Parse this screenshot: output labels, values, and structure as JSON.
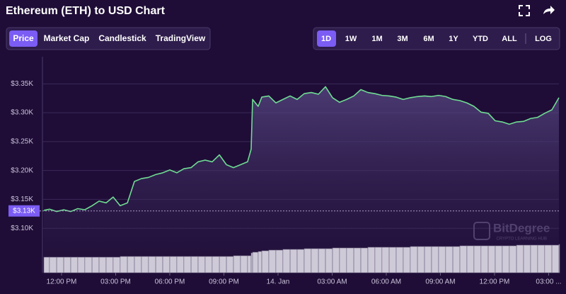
{
  "chart_data": {
    "type": "line",
    "title": "Ethereum (ETH) to USD Chart",
    "x": [
      -0.98,
      -0.67,
      -0.27,
      0.12,
      0.51,
      0.9,
      1.29,
      1.69,
      2.08,
      2.47,
      2.86,
      3.25,
      3.65,
      4.04,
      4.43,
      4.82,
      5.22,
      5.61,
      6.0,
      6.39,
      6.78,
      7.18,
      7.57,
      7.96,
      8.35,
      8.75,
      9.14,
      9.53,
      9.92,
      10.31,
      10.51,
      10.59,
      10.9,
      11.1,
      11.49,
      11.88,
      12.27,
      12.67,
      13.06,
      13.45,
      13.84,
      14.24,
      14.63,
      15.02,
      15.41,
      15.8,
      16.2,
      16.59,
      16.98,
      17.37,
      17.76,
      18.16,
      18.55,
      18.94,
      19.33,
      19.73,
      20.12,
      20.51,
      20.9,
      21.29,
      21.69,
      22.08,
      22.47,
      22.86,
      23.25,
      23.65,
      24.04,
      24.43,
      24.82,
      25.22,
      25.61,
      26.0,
      26.39,
      26.78,
      27.18,
      27.57
    ],
    "values": [
      3131,
      3133,
      3129,
      3132,
      3129,
      3134,
      3132,
      3139,
      3147,
      3144,
      3154,
      3139,
      3144,
      3181,
      3186,
      3188,
      3193,
      3196,
      3201,
      3196,
      3203,
      3205,
      3215,
      3218,
      3215,
      3227,
      3210,
      3205,
      3210,
      3215,
      3237,
      3323,
      3311,
      3327,
      3329,
      3317,
      3323,
      3329,
      3323,
      3333,
      3335,
      3332,
      3345,
      3326,
      3318,
      3323,
      3329,
      3340,
      3335,
      3333,
      3330,
      3329,
      3327,
      3323,
      3326,
      3328,
      3329,
      3328,
      3330,
      3328,
      3323,
      3321,
      3317,
      3311,
      3301,
      3299,
      3286,
      3284,
      3280,
      3284,
      3285,
      3290,
      3292,
      3299,
      3305,
      3326
    ],
    "volume": [
      22,
      22,
      22,
      22,
      22,
      22,
      22,
      22,
      22,
      22,
      22,
      23,
      23,
      23,
      23,
      23,
      23,
      23,
      23,
      23,
      23,
      23,
      23,
      23,
      23,
      23,
      23,
      24,
      24,
      24,
      28,
      29,
      30,
      31,
      32,
      32,
      33,
      33,
      33,
      34,
      34,
      34,
      34,
      35,
      35,
      35,
      35,
      35,
      36,
      36,
      36,
      36,
      36,
      36,
      37,
      37,
      37,
      37,
      37,
      37,
      37,
      38,
      38,
      38,
      38,
      38,
      38,
      38,
      38,
      39,
      39,
      39,
      39,
      39,
      39,
      40
    ],
    "color": "#6fdc92",
    "xlim": [
      -0.98,
      27.57
    ],
    "xticks": [
      {
        "value": 0,
        "label": "12:00 PM"
      },
      {
        "value": 3,
        "label": "03:00 PM"
      },
      {
        "value": 6,
        "label": "06:00 PM"
      },
      {
        "value": 9,
        "label": "09:00 PM"
      },
      {
        "value": 12,
        "label": "14. Jan"
      },
      {
        "value": 15,
        "label": "03:00 AM"
      },
      {
        "value": 18,
        "label": "06:00 AM"
      },
      {
        "value": 21,
        "label": "09:00 AM"
      },
      {
        "value": 24,
        "label": "12:00 PM"
      },
      {
        "value": 27,
        "label": "03:00 ..."
      }
    ],
    "ylim": [
      3023,
      3397
    ],
    "yticks": [
      {
        "value": 3100,
        "label": "$3.10K"
      },
      {
        "value": 3150,
        "label": "$3.15K"
      },
      {
        "value": 3200,
        "label": "$3.20K"
      },
      {
        "value": 3250,
        "label": "$3.25K"
      },
      {
        "value": 3300,
        "label": "$3.30K"
      },
      {
        "value": 3350,
        "label": "$3.35K"
      }
    ],
    "current_price": {
      "value": 3130,
      "label": "$3.13K"
    },
    "grid": true
  },
  "ui": {
    "tabs": [
      "Price",
      "Market Cap",
      "Candlestick",
      "TradingView"
    ],
    "ranges": [
      "1D",
      "1W",
      "1M",
      "3M",
      "6M",
      "1Y",
      "YTD",
      "ALL",
      "LOG"
    ],
    "watermark": {
      "brand": "BitDegree",
      "tagline": "CRYPTO LEARNING HUB"
    }
  }
}
